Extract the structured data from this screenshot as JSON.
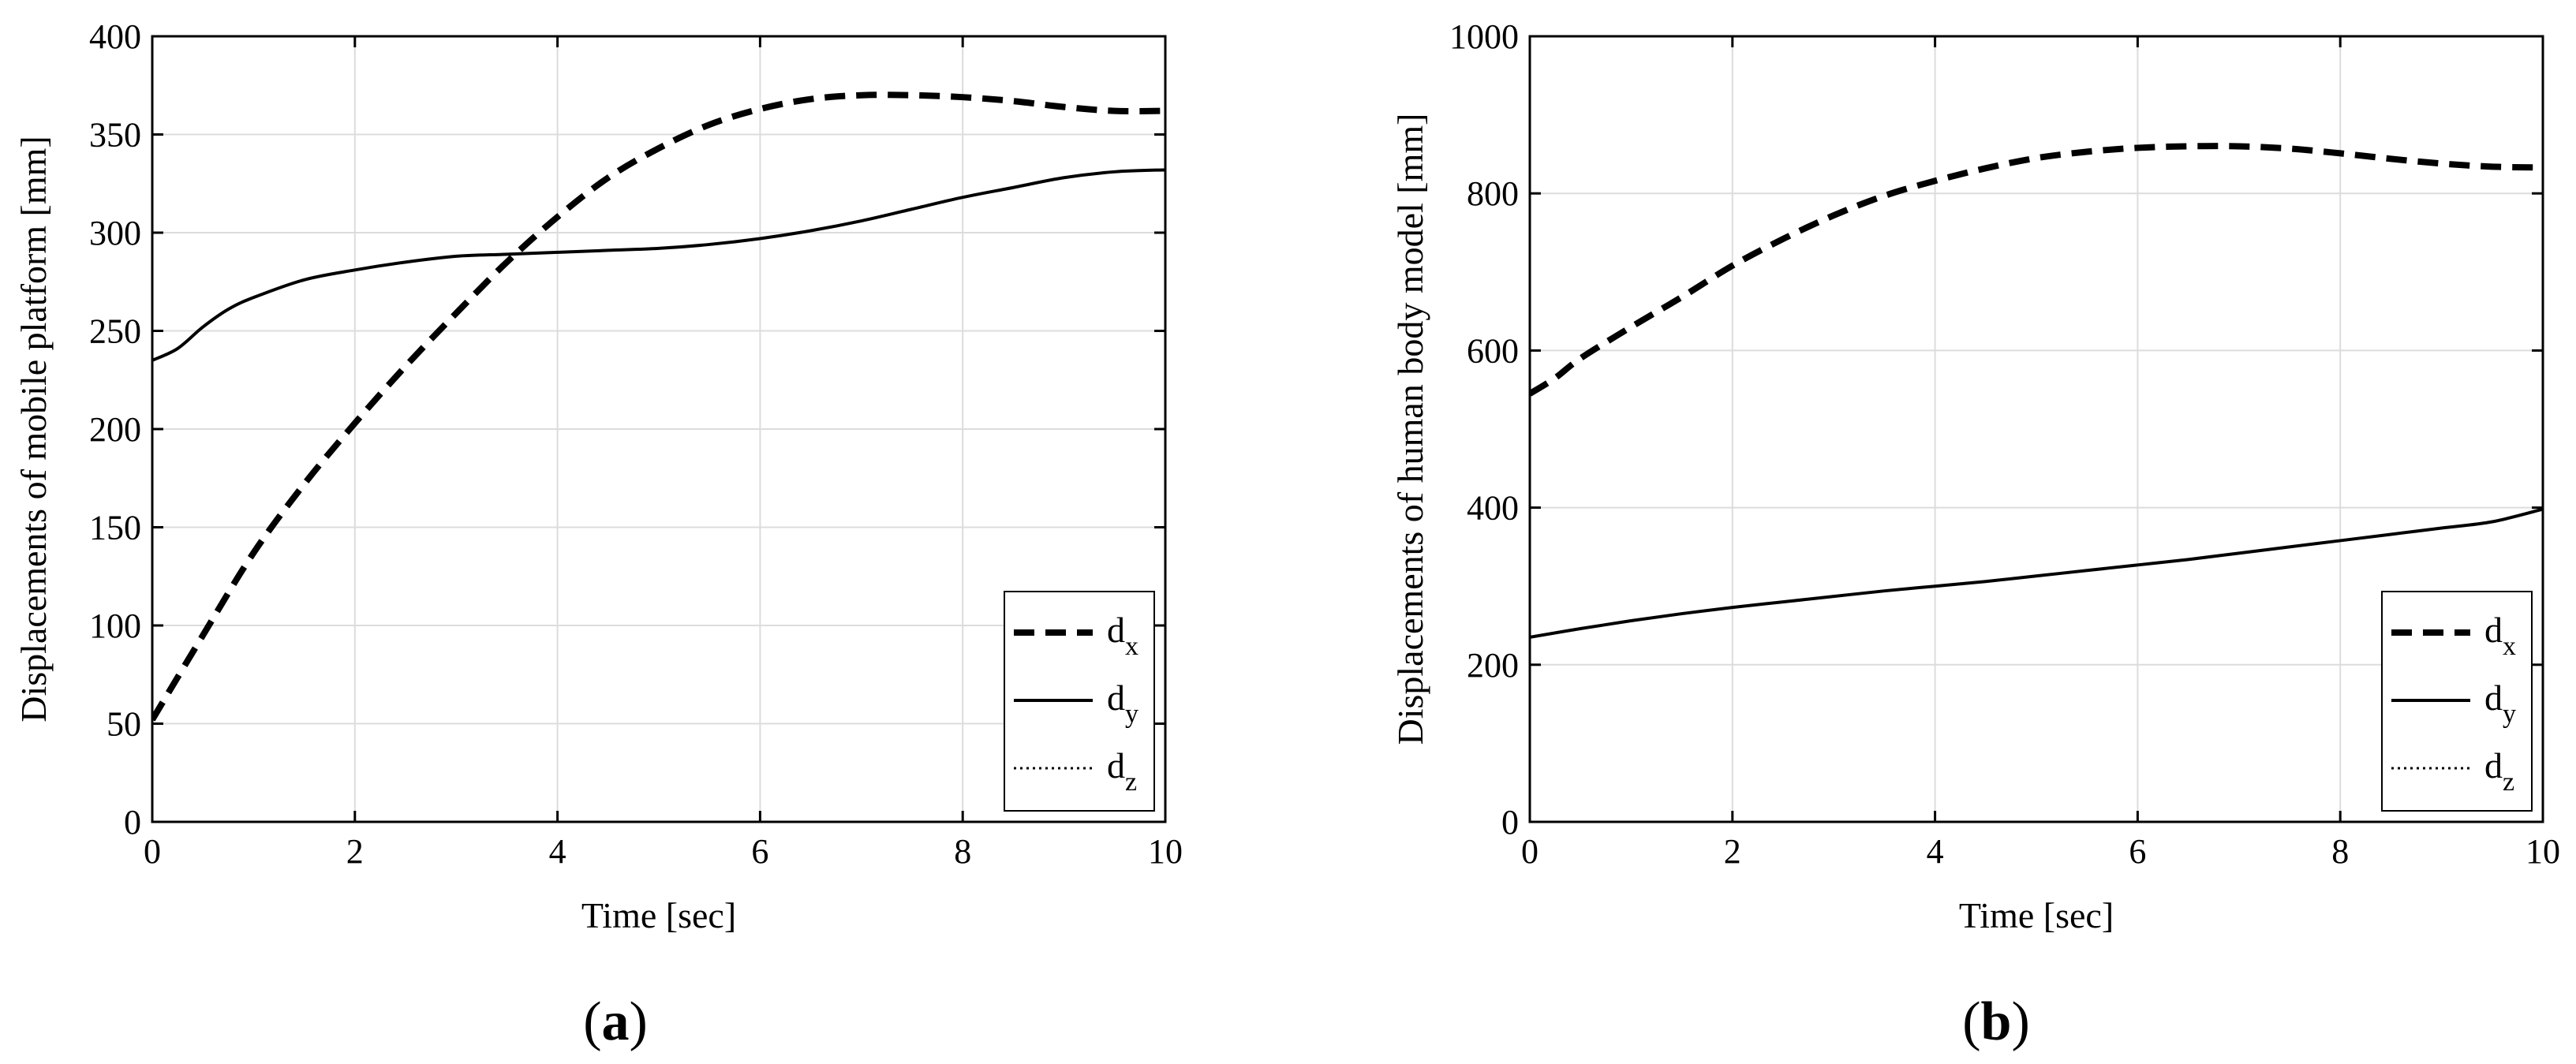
{
  "figure": {
    "panels": [
      {
        "label": "a"
      },
      {
        "label": "b"
      }
    ]
  },
  "chart_data": [
    {
      "type": "line",
      "panel_label": "(a)",
      "title": "",
      "xlabel": "Time [sec]",
      "ylabel": "Displacements of mobile platform [mm]",
      "xlim": [
        0,
        10
      ],
      "ylim": [
        0,
        400
      ],
      "xticks": [
        0,
        2,
        4,
        6,
        8,
        10
      ],
      "yticks": [
        0,
        50,
        100,
        150,
        200,
        250,
        300,
        350,
        400
      ],
      "grid": true,
      "legend_position": "bottom-right",
      "legend": [
        {
          "base": "d",
          "sub": "x",
          "style": "dashed"
        },
        {
          "base": "d",
          "sub": "y",
          "style": "solid"
        },
        {
          "base": "d",
          "sub": "z",
          "style": "dotted"
        }
      ],
      "series": [
        {
          "name": "dx",
          "style": "dashed",
          "x": [
            0,
            0.5,
            1,
            1.5,
            2,
            2.5,
            3,
            3.5,
            4,
            4.5,
            5,
            5.5,
            6,
            6.5,
            7,
            7.5,
            8,
            8.5,
            9,
            9.5,
            10
          ],
          "y": [
            52,
            95,
            137,
            172,
            203,
            232,
            259,
            285,
            308,
            328,
            343,
            355,
            363,
            368,
            370,
            370,
            369,
            367,
            364,
            362,
            362
          ]
        },
        {
          "name": "dy",
          "style": "solid",
          "x": [
            0,
            0.25,
            0.5,
            0.75,
            1,
            1.5,
            2,
            2.5,
            3,
            3.5,
            4,
            4.5,
            5,
            5.5,
            6,
            6.5,
            7,
            7.5,
            8,
            8.5,
            9,
            9.5,
            10
          ],
          "y": [
            235,
            241,
            252,
            261,
            267,
            276,
            281,
            285,
            288,
            289,
            290,
            291,
            292,
            294,
            297,
            301,
            306,
            312,
            318,
            323,
            328,
            331,
            332
          ]
        },
        {
          "name": "dz",
          "style": "dotted",
          "x": [
            0,
            10
          ],
          "y": [
            0,
            0
          ]
        }
      ]
    },
    {
      "type": "line",
      "panel_label": "(b)",
      "title": "",
      "xlabel": "Time [sec]",
      "ylabel": "Displacements of human body model [mm]",
      "xlim": [
        0,
        10
      ],
      "ylim": [
        0,
        1000
      ],
      "xticks": [
        0,
        2,
        4,
        6,
        8,
        10
      ],
      "yticks": [
        0,
        200,
        400,
        600,
        800,
        1000
      ],
      "grid": true,
      "legend_position": "bottom-right",
      "legend": [
        {
          "base": "d",
          "sub": "x",
          "style": "dashed"
        },
        {
          "base": "d",
          "sub": "y",
          "style": "solid"
        },
        {
          "base": "d",
          "sub": "z",
          "style": "dotted"
        }
      ],
      "series": [
        {
          "name": "dx",
          "style": "dashed",
          "x": [
            0,
            0.25,
            0.5,
            1,
            1.5,
            2,
            2.5,
            3,
            3.5,
            4,
            4.5,
            5,
            5.5,
            6,
            6.5,
            7,
            7.5,
            8,
            8.5,
            9,
            9.5,
            10
          ],
          "y": [
            545,
            565,
            590,
            630,
            668,
            708,
            742,
            772,
            797,
            816,
            832,
            845,
            853,
            858,
            860,
            860,
            857,
            851,
            844,
            838,
            834,
            833
          ]
        },
        {
          "name": "dy",
          "style": "solid",
          "x": [
            0,
            0.5,
            1,
            1.5,
            2,
            2.5,
            3,
            3.5,
            4,
            4.5,
            5,
            5.5,
            6,
            6.5,
            7,
            7.5,
            8,
            8.5,
            9,
            9.5,
            10
          ],
          "y": [
            235,
            246,
            256,
            265,
            273,
            280,
            287,
            294,
            300,
            306,
            313,
            320,
            327,
            334,
            342,
            350,
            358,
            366,
            374,
            382,
            398
          ]
        },
        {
          "name": "dz",
          "style": "dotted",
          "x": [
            0,
            10
          ],
          "y": [
            0,
            0
          ]
        }
      ]
    }
  ]
}
